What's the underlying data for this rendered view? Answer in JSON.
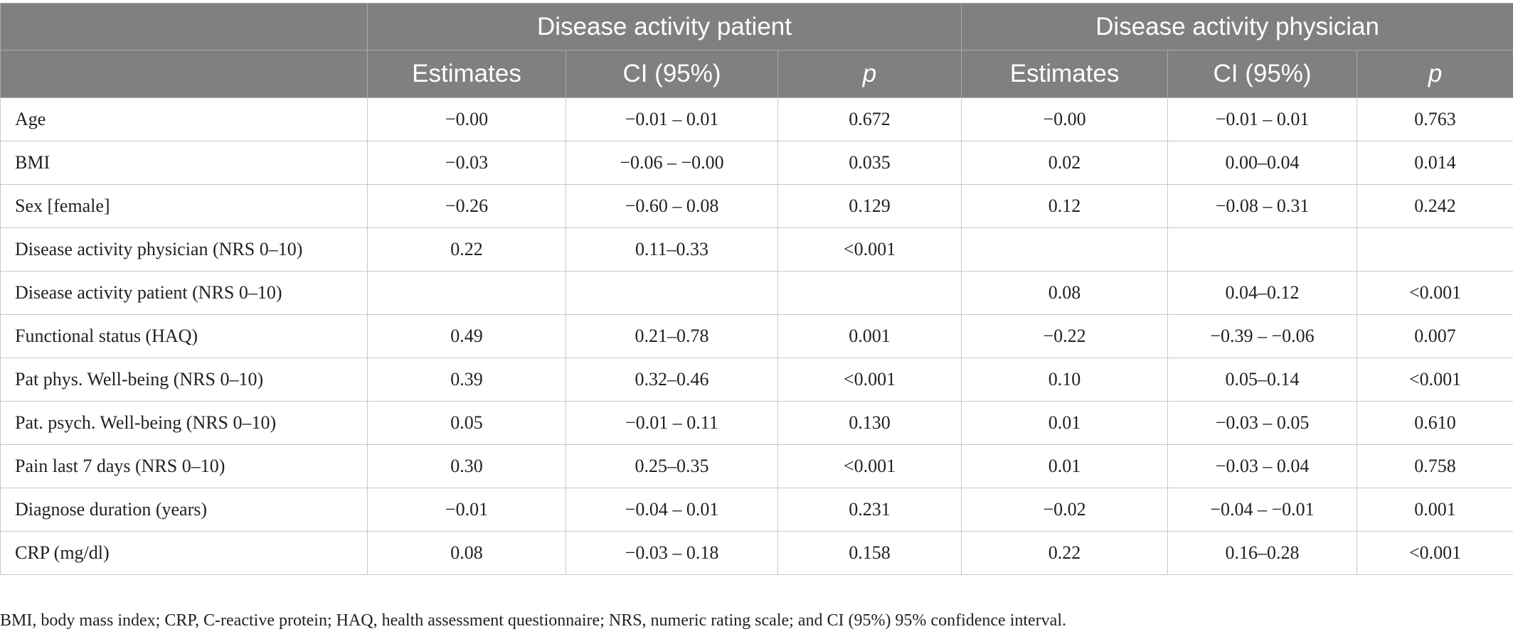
{
  "table": {
    "group_headers": [
      "Disease activity patient",
      "Disease activity physician"
    ],
    "column_headers": [
      "",
      "Estimates",
      "CI (95%)",
      "p",
      "Estimates",
      "CI (95%)",
      "p"
    ],
    "rows": [
      {
        "label": "Age",
        "cells": [
          "−0.00",
          "−0.01 – 0.01",
          "0.672",
          "−0.00",
          "−0.01 – 0.01",
          "0.763"
        ]
      },
      {
        "label": "BMI",
        "cells": [
          "−0.03",
          "−0.06 – −0.00",
          "0.035",
          "0.02",
          "0.00–0.04",
          "0.014"
        ]
      },
      {
        "label": "Sex [female]",
        "cells": [
          "−0.26",
          "−0.60 – 0.08",
          "0.129",
          "0.12",
          "−0.08 – 0.31",
          "0.242"
        ]
      },
      {
        "label": "Disease activity physician (NRS 0–10)",
        "cells": [
          "0.22",
          "0.11–0.33",
          "<0.001",
          "",
          "",
          ""
        ]
      },
      {
        "label": "Disease activity patient (NRS 0–10)",
        "cells": [
          "",
          "",
          "",
          "0.08",
          "0.04–0.12",
          "<0.001"
        ]
      },
      {
        "label": "Functional status (HAQ)",
        "cells": [
          "0.49",
          "0.21–0.78",
          "0.001",
          "−0.22",
          "−0.39 – −0.06",
          "0.007"
        ]
      },
      {
        "label": "Pat phys. Well-being (NRS 0–10)",
        "cells": [
          "0.39",
          "0.32–0.46",
          "<0.001",
          "0.10",
          "0.05–0.14",
          "<0.001"
        ]
      },
      {
        "label": "Pat. psych. Well-being (NRS 0–10)",
        "cells": [
          "0.05",
          "−0.01 – 0.11",
          "0.130",
          "0.01",
          "−0.03 – 0.05",
          "0.610"
        ]
      },
      {
        "label": "Pain last 7 days (NRS 0–10)",
        "cells": [
          "0.30",
          "0.25–0.35",
          "<0.001",
          "0.01",
          "−0.03 – 0.04",
          "0.758"
        ]
      },
      {
        "label": "Diagnose duration (years)",
        "cells": [
          "−0.01",
          "−0.04 – 0.01",
          "0.231",
          "−0.02",
          "−0.04 – −0.01",
          "0.001"
        ]
      },
      {
        "label": "CRP (mg/dl)",
        "cells": [
          "0.08",
          "−0.03 – 0.18",
          "0.158",
          "0.22",
          "0.16–0.28",
          "<0.001"
        ]
      }
    ]
  },
  "footnote": "BMI, body mass index; CRP, C-reactive protein; HAQ, health assessment questionnaire; NRS, numeric rating scale; and CI (95%) 95% confidence interval.",
  "colors": {
    "header_bg": "#808080",
    "header_text": "#ffffff",
    "body_text": "#222222",
    "grid_line": "#c8c8c8"
  }
}
